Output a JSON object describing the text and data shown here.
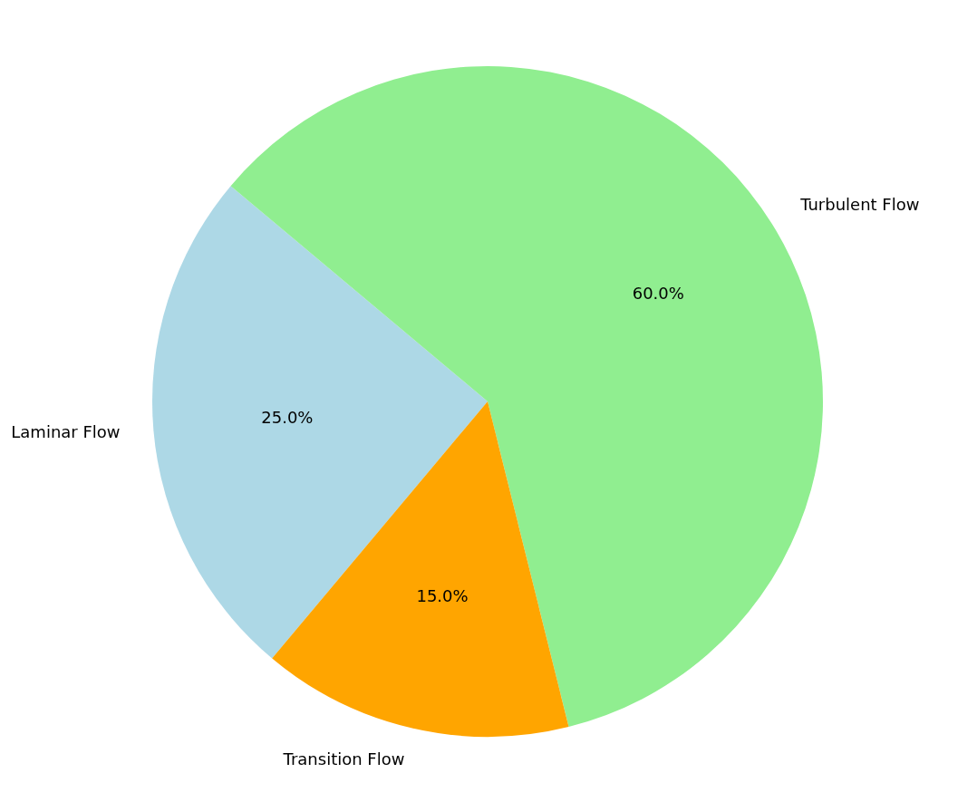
{
  "chart_data": {
    "type": "pie",
    "categories": [
      "Laminar Flow",
      "Turbulent Flow",
      "Transition Flow"
    ],
    "values": [
      25,
      60,
      15
    ],
    "value_labels": [
      "25.0%",
      "60.0%",
      "15.0%"
    ],
    "colors": [
      "#add8e6",
      "#90ee90",
      "#ffa500"
    ],
    "legend": false
  }
}
